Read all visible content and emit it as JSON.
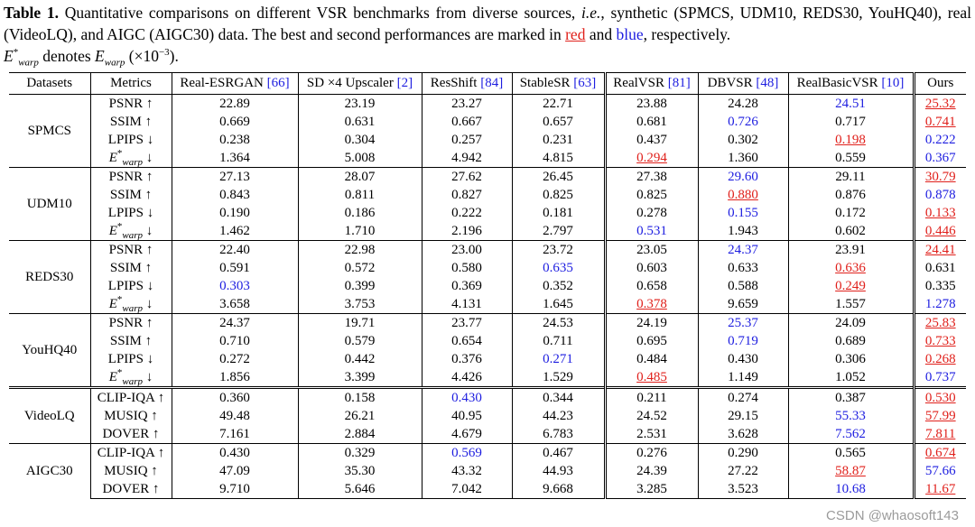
{
  "caption": {
    "parts": [
      "Table 1.",
      "Quantitative comparisons on different VSR benchmarks from diverse sources, ",
      "i.e.",
      ", synthetic (SPMCS, UDM10, REDS30, YouHQ40), real (VideoLQ), and AIGC (AIGC30) data. The best and second performances are marked in ",
      "red",
      " and ",
      "blue",
      ", respectively.",
      "E",
      "*",
      "warp",
      " denotes ",
      "E",
      "warp",
      " (×10",
      "−3",
      ")."
    ]
  },
  "table": {
    "headers": [
      {
        "name": "Datasets"
      },
      {
        "name": "Metrics"
      },
      {
        "name": "Real-ESRGAN ",
        "ref": "[66]"
      },
      {
        "name": "SD ×4 Upscaler ",
        "ref": "[2]"
      },
      {
        "name": "ResShift ",
        "ref": "[84]"
      },
      {
        "name": "StableSR ",
        "ref": "[63]"
      },
      {
        "name": "RealVSR ",
        "ref": "[81]"
      },
      {
        "name": "DBVSR ",
        "ref": "[48]"
      },
      {
        "name": "RealBasicVSR ",
        "ref": "[10]"
      },
      {
        "name": "Ours"
      }
    ],
    "groups": [
      {
        "name": "SPMCS",
        "rows": [
          {
            "metric": "PSNR ↑",
            "values": [
              "22.89",
              "23.19",
              "23.27",
              "22.71",
              "23.88",
              "24.28",
              "24.51",
              "25.32"
            ]
          },
          {
            "metric": "SSIM ↑",
            "values": [
              "0.669",
              "0.631",
              "0.667",
              "0.657",
              "0.681",
              "0.726",
              "0.717",
              "0.741"
            ]
          },
          {
            "metric": "LPIPS ↓",
            "values": [
              "0.238",
              "0.304",
              "0.257",
              "0.231",
              "0.437",
              "0.302",
              "0.198",
              "0.222"
            ]
          },
          {
            "metric": {
              "base": "E",
              "sup": "*",
              "sub": "warp",
              "arrow": " ↓"
            },
            "values": [
              "1.364",
              "5.008",
              "4.942",
              "4.815",
              "0.294",
              "1.360",
              "0.559",
              "0.367"
            ]
          }
        ]
      },
      {
        "name": "UDM10",
        "rows": [
          {
            "metric": "PSNR ↑",
            "values": [
              "27.13",
              "28.07",
              "27.62",
              "26.45",
              "27.38",
              "29.60",
              "29.11",
              "30.79"
            ]
          },
          {
            "metric": "SSIM ↑",
            "values": [
              "0.843",
              "0.811",
              "0.827",
              "0.825",
              "0.825",
              "0.880",
              "0.876",
              "0.878"
            ]
          },
          {
            "metric": "LPIPS ↓",
            "values": [
              "0.190",
              "0.186",
              "0.222",
              "0.181",
              "0.278",
              "0.155",
              "0.172",
              "0.133"
            ]
          },
          {
            "metric": {
              "base": "E",
              "sup": "*",
              "sub": "warp",
              "arrow": " ↓"
            },
            "values": [
              "1.462",
              "1.710",
              "2.196",
              "2.797",
              "0.531",
              "1.943",
              "0.602",
              "0.446"
            ]
          }
        ]
      },
      {
        "name": "REDS30",
        "rows": [
          {
            "metric": "PSNR ↑",
            "values": [
              "22.40",
              "22.98",
              "23.00",
              "23.72",
              "23.05",
              "24.37",
              "23.91",
              "24.41"
            ]
          },
          {
            "metric": "SSIM ↑",
            "values": [
              "0.591",
              "0.572",
              "0.580",
              "0.635",
              "0.603",
              "0.633",
              "0.636",
              "0.631"
            ]
          },
          {
            "metric": "LPIPS ↓",
            "values": [
              "0.303",
              "0.399",
              "0.369",
              "0.352",
              "0.658",
              "0.588",
              "0.249",
              "0.335"
            ]
          },
          {
            "metric": {
              "base": "E",
              "sup": "*",
              "sub": "warp",
              "arrow": " ↓"
            },
            "values": [
              "3.658",
              "3.753",
              "4.131",
              "1.645",
              "0.378",
              "9.659",
              "1.557",
              "1.278"
            ]
          }
        ]
      },
      {
        "name": "YouHQ40",
        "rows": [
          {
            "metric": "PSNR ↑",
            "values": [
              "24.37",
              "19.71",
              "23.77",
              "24.53",
              "24.19",
              "25.37",
              "24.09",
              "25.83"
            ]
          },
          {
            "metric": "SSIM ↑",
            "values": [
              "0.710",
              "0.579",
              "0.654",
              "0.711",
              "0.695",
              "0.719",
              "0.689",
              "0.733"
            ]
          },
          {
            "metric": "LPIPS ↓",
            "values": [
              "0.272",
              "0.442",
              "0.376",
              "0.271",
              "0.484",
              "0.430",
              "0.306",
              "0.268"
            ]
          },
          {
            "metric": {
              "base": "E",
              "sup": "*",
              "sub": "warp",
              "arrow": " ↓"
            },
            "values": [
              "1.856",
              "3.399",
              "4.426",
              "1.529",
              "0.485",
              "1.149",
              "1.052",
              "0.737"
            ]
          }
        ]
      },
      {
        "name": "VideoLQ",
        "rows": [
          {
            "metric": "CLIP-IQA ↑",
            "values": [
              "0.360",
              "0.158",
              "0.430",
              "0.344",
              "0.211",
              "0.274",
              "0.387",
              "0.530"
            ]
          },
          {
            "metric": "MUSIQ ↑",
            "values": [
              "49.48",
              "26.21",
              "40.95",
              "44.23",
              "24.52",
              "29.15",
              "55.33",
              "57.99"
            ]
          },
          {
            "metric": "DOVER ↑",
            "values": [
              "7.161",
              "2.884",
              "4.679",
              "6.783",
              "2.531",
              "3.628",
              "7.562",
              "7.811"
            ]
          }
        ]
      },
      {
        "name": "AIGC30",
        "rows": [
          {
            "metric": "CLIP-IQA ↑",
            "values": [
              "0.430",
              "0.329",
              "0.569",
              "0.467",
              "0.276",
              "0.290",
              "0.565",
              "0.674"
            ]
          },
          {
            "metric": "MUSIQ ↑",
            "values": [
              "47.09",
              "35.30",
              "43.32",
              "44.93",
              "24.39",
              "27.22",
              "58.87",
              "57.66"
            ]
          },
          {
            "metric": "DOVER ↑",
            "values": [
              "9.710",
              "5.646",
              "7.042",
              "9.668",
              "3.285",
              "3.523",
              "10.68",
              "11.67"
            ]
          }
        ]
      }
    ]
  },
  "watermark": "CSDN @whaosoft143"
}
